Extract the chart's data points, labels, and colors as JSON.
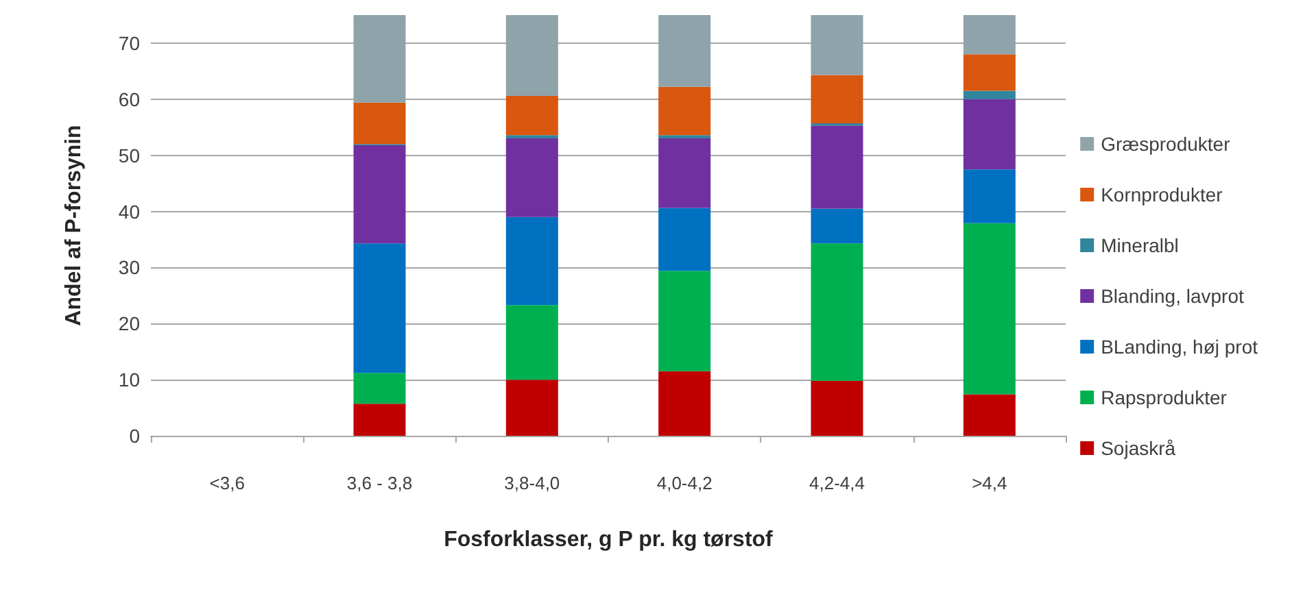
{
  "chart_data": {
    "type": "bar",
    "stacked": true,
    "xlabel": "Fosforklasser, g P pr. kg tørstof",
    "ylabel": "Andel af P-forsynin",
    "categories": [
      "<3,6",
      "3,6 - 3,8",
      "3,8-4,0",
      "4,0-4,2",
      "4,2-4,4",
      ">4,4"
    ],
    "series": [
      {
        "name": "Sojaskrå",
        "color": "#c00000",
        "values": [
          null,
          5.7,
          10,
          11.5,
          9.8,
          7.4
        ]
      },
      {
        "name": "Rapsprodukter",
        "color": "#00b050",
        "values": [
          null,
          5.5,
          13.3,
          17.9,
          24.5,
          30.5
        ]
      },
      {
        "name": "BLanding, høj prot",
        "color": "#0070c0",
        "values": [
          null,
          23.1,
          15.7,
          11.2,
          6.2,
          9.6
        ]
      },
      {
        "name": "Blanding, lavprot",
        "color": "#7030a0",
        "values": [
          null,
          17.5,
          14,
          12.4,
          14.8,
          12.5
        ]
      },
      {
        "name": "Mineralbl",
        "color": "#31859c",
        "values": [
          null,
          0.2,
          0.6,
          0.6,
          0.4,
          1.5
        ]
      },
      {
        "name": "Kornprodukter",
        "color": "#d9570f",
        "values": [
          null,
          7.4,
          7,
          8.6,
          8.6,
          6.5
        ]
      },
      {
        "name": "Græsprodukter",
        "color": "#8fa3ab",
        "values": [
          null,
          15.6,
          14.4,
          12.8,
          10.7,
          7
        ]
      }
    ],
    "ylim": [
      0,
      75
    ],
    "yticks": [
      0,
      10,
      20,
      30,
      40,
      50,
      60,
      70
    ],
    "grid": "y",
    "legend": "right"
  }
}
